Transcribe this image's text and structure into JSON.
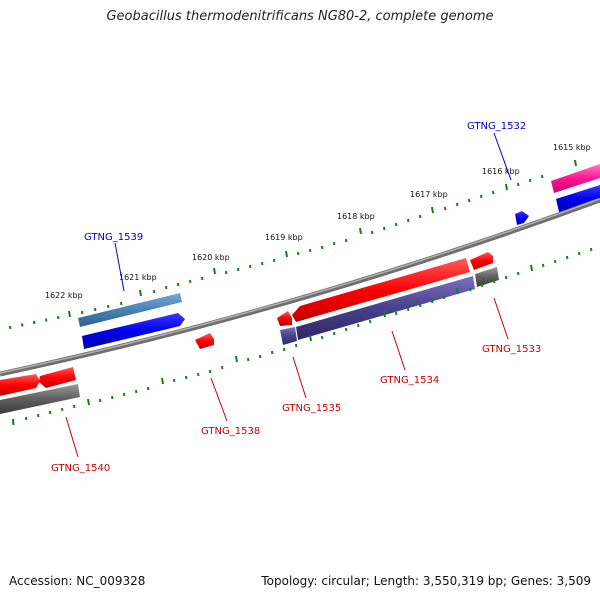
{
  "title": "Geobacillus thermodenitrificans NG80-2, complete genome",
  "accession": "Accession: NC_009328",
  "summary": "Topology: circular; Length: 3,550,319 bp; Genes: 3,509",
  "kbp_labels": [
    "1615 kbp",
    "1616 kbp",
    "1617 kbp",
    "1618 kbp",
    "1619 kbp",
    "1620 kbp",
    "1621 kbp",
    "1622 kbp"
  ],
  "genes": {
    "g1532": "GTNG_1532",
    "g1533": "GTNG_1533",
    "g1534": "GTNG_1534",
    "g1535": "GTNG_1535",
    "g1538": "GTNG_1538",
    "g1539": "GTNG_1539",
    "g1540": "GTNG_1540"
  },
  "colors": {
    "backbone": "#808080",
    "tick": "#1e7a1e",
    "red_feature": "#ff0000",
    "blue_feature": "#0000ee",
    "steelblue_feature": "#4682b4",
    "gray_feature": "#5f5f5f",
    "purple_feature": "#48408c",
    "pink_feature": "#ff1493",
    "forward_label": "#0000cc",
    "reverse_label": "#cc0000"
  }
}
